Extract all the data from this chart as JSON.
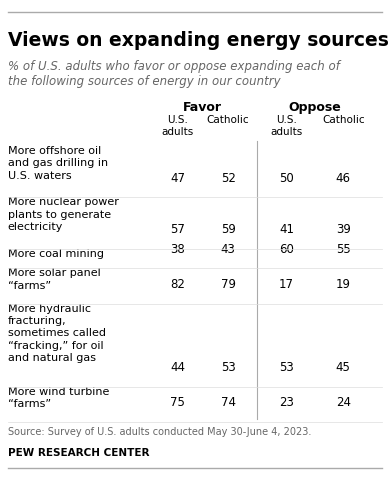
{
  "title": "Views on expanding energy sources",
  "subtitle": "% of U.S. adults who favor or oppose expanding each of\nthe following sources of energy in our country",
  "col_headers": [
    "Favor",
    "Oppose"
  ],
  "col_subheaders": [
    "U.S.\nadults",
    "Catholic",
    "U.S.\nadults",
    "Catholic"
  ],
  "rows": [
    {
      "label": "More offshore oil\nand gas drilling in\nU.S. waters",
      "values": [
        47,
        52,
        50,
        46
      ]
    },
    {
      "label": "More nuclear power\nplants to generate\nelectricity",
      "values": [
        57,
        59,
        41,
        39
      ]
    },
    {
      "label": "More coal mining",
      "values": [
        38,
        43,
        60,
        55
      ]
    },
    {
      "label": "More solar panel\n“farms”",
      "values": [
        82,
        79,
        17,
        19
      ]
    },
    {
      "label": "More hydraulic\nfracturing,\nsometimes called\n“fracking,” for oil\nand natural gas",
      "values": [
        44,
        53,
        53,
        45
      ]
    },
    {
      "label": "More wind turbine\n“farms”",
      "values": [
        75,
        74,
        23,
        24
      ]
    }
  ],
  "source": "Source: Survey of U.S. adults conducted May 30-June 4, 2023.",
  "footer": "PEW RESEARCH CENTER",
  "bg_color": "#ffffff",
  "text_color": "#000000",
  "subtitle_color": "#666666",
  "source_color": "#666666",
  "line_color": "#aaaaaa",
  "top_line_color": "#aaaaaa"
}
